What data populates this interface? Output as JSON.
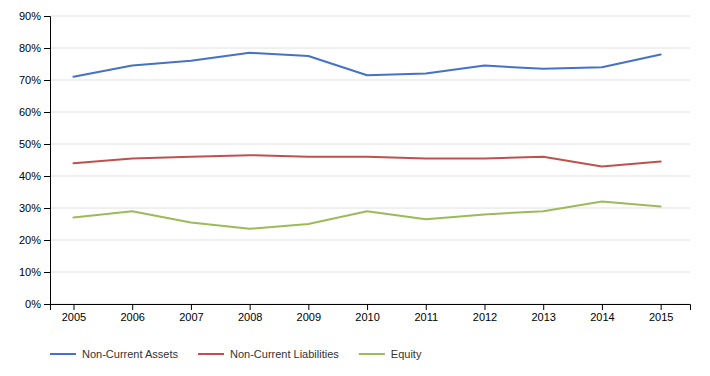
{
  "chart_data": {
    "type": "line",
    "x": [
      2005,
      2006,
      2007,
      2008,
      2009,
      2010,
      2011,
      2012,
      2013,
      2014,
      2015
    ],
    "series": [
      {
        "name": "Non-Current Assets",
        "color": "#4472C4",
        "values": [
          0.71,
          0.745,
          0.76,
          0.785,
          0.775,
          0.715,
          0.72,
          0.745,
          0.735,
          0.74,
          0.78
        ]
      },
      {
        "name": "Non-Current Liabilities",
        "color": "#C0504D",
        "values": [
          0.44,
          0.455,
          0.46,
          0.465,
          0.46,
          0.46,
          0.455,
          0.455,
          0.46,
          0.43,
          0.445
        ]
      },
      {
        "name": "Equity",
        "color": "#9BBB59",
        "values": [
          0.27,
          0.29,
          0.255,
          0.235,
          0.25,
          0.29,
          0.265,
          0.28,
          0.29,
          0.32,
          0.305
        ]
      }
    ],
    "xlim": [
      2004.6,
      2015.5
    ],
    "xticks": [
      2005,
      2006,
      2007,
      2008,
      2009,
      2010,
      2011,
      2012,
      2013,
      2014,
      2015
    ],
    "ylim": [
      0.0,
      0.9
    ],
    "yticks": [
      {
        "value": 0.0,
        "label": "0%"
      },
      {
        "value": 0.1,
        "label": "10%"
      },
      {
        "value": 0.2,
        "label": "20%"
      },
      {
        "value": 0.3,
        "label": "30%"
      },
      {
        "value": 0.4,
        "label": "40%"
      },
      {
        "value": 0.5,
        "label": "50%"
      },
      {
        "value": 0.6,
        "label": "60%"
      },
      {
        "value": 0.7,
        "label": "70%"
      },
      {
        "value": 0.8,
        "label": "80%"
      },
      {
        "value": 0.9,
        "label": "90%"
      }
    ],
    "grid": true,
    "legend": "bottom"
  }
}
